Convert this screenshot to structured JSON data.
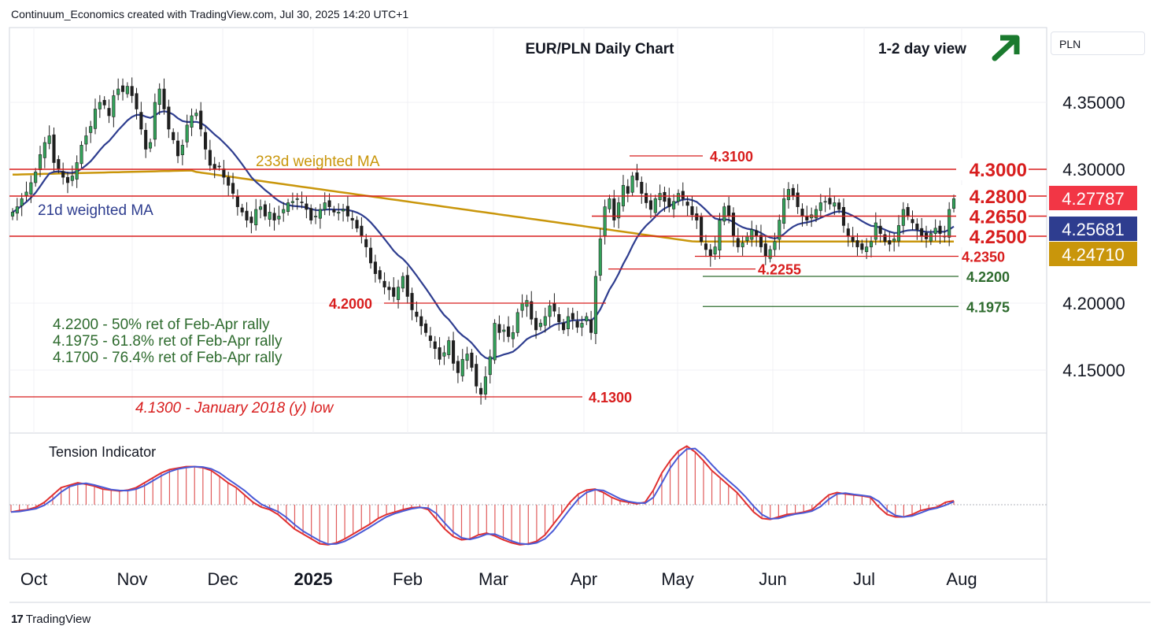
{
  "header": {
    "watermark": "Continuum_Economics created with TradingView.com, Jul 30, 2025 14:20 UTC+1"
  },
  "toolbar": {
    "currency": "PLN"
  },
  "footer": {
    "brand": "TradingView"
  },
  "chart_data": {
    "type": "candlestick",
    "title": "EUR/PLN Daily Chart",
    "view_label": "1-2 day view",
    "view_direction": "up",
    "grid": true,
    "ylim": [
      4.11,
      4.38
    ],
    "y_ticks": [
      "4.35000",
      "4.30000",
      "4.20000",
      "4.15000"
    ],
    "y_tick_values": [
      4.35,
      4.3,
      4.2,
      4.15
    ],
    "x_labels": [
      "Oct",
      "Nov",
      "Dec",
      "2025",
      "Feb",
      "Mar",
      "Apr",
      "May",
      "Jun",
      "Jul",
      "Aug"
    ],
    "x_label_bold": [
      false,
      false,
      false,
      true,
      false,
      false,
      false,
      false,
      false,
      false,
      false
    ],
    "price_badges": [
      {
        "value": "4.27787",
        "color": "#f23645"
      },
      {
        "value": "4.25681",
        "color": "#2e3d8f"
      },
      {
        "value": "4.24710",
        "color": "#c9960b"
      }
    ],
    "resistance_levels": [
      {
        "label": "4.3000",
        "value": 4.3
      },
      {
        "label": "4.2800",
        "value": 4.28
      },
      {
        "label": "4.2650",
        "value": 4.265
      },
      {
        "label": "4.2500",
        "value": 4.25
      }
    ],
    "minor_levels": [
      {
        "label": "4.3100",
        "value": 4.31,
        "color": "#d81e1e"
      },
      {
        "label": "4.2350",
        "value": 4.235,
        "color": "#d81e1e"
      },
      {
        "label": "4.2255",
        "value": 4.2255,
        "color": "#d81e1e"
      },
      {
        "label": "4.2200",
        "value": 4.22,
        "color": "#2e6b2e"
      },
      {
        "label": "4.2000",
        "value": 4.2,
        "color": "#d81e1e"
      },
      {
        "label": "4.1975",
        "value": 4.1975,
        "color": "#2e6b2e"
      },
      {
        "label": "4.1300",
        "value": 4.13,
        "color": "#d81e1e"
      }
    ],
    "annotations": {
      "ma233_label": "233d weighted MA",
      "ma21_label": "21d weighted MA",
      "low_note": "4.1300 - January 2018 (y) low",
      "retracements": [
        "4.2200 - 50% ret of Feb-Apr rally",
        "4.1975 - 61.8% ret of Feb-Apr rally",
        "4.1700 - 76.4% ret of Feb-Apr rally"
      ],
      "indicator_title": "Tension Indicator"
    },
    "colors": {
      "up": "#33a35a",
      "down": "#1f1f1f",
      "resistance": "#d81e1e",
      "support": "#2e6b2e",
      "ma21": "#2e3d8f",
      "ma233": "#c9960b"
    },
    "series": [
      {
        "name": "EUR/PLN close (approx.)",
        "values": [
          4.268,
          4.272,
          4.278,
          4.283,
          4.29,
          4.298,
          4.311,
          4.32,
          4.325,
          4.305,
          4.3,
          4.294,
          4.29,
          4.295,
          4.305,
          4.318,
          4.325,
          4.332,
          4.345,
          4.35,
          4.348,
          4.34,
          4.355,
          4.36,
          4.358,
          4.362,
          4.355,
          4.345,
          4.33,
          4.315,
          4.32,
          4.35,
          4.36,
          4.345,
          4.33,
          4.322,
          4.31,
          4.318,
          4.333,
          4.34,
          4.342,
          4.33,
          4.315,
          4.303,
          4.3,
          4.302,
          4.294,
          4.288,
          4.282,
          4.272,
          4.268,
          4.262,
          4.26,
          4.27,
          4.272,
          4.265,
          4.268,
          4.262,
          4.265,
          4.27,
          4.275,
          4.276,
          4.278,
          4.275,
          4.27,
          4.262,
          4.265,
          4.27,
          4.275,
          4.272,
          4.268,
          4.268,
          4.27,
          4.265,
          4.262,
          4.256,
          4.25,
          4.242,
          4.23,
          4.222,
          4.218,
          4.212,
          4.21,
          4.205,
          4.212,
          4.22,
          4.205,
          4.195,
          4.19,
          4.183,
          4.178,
          4.172,
          4.166,
          4.158,
          4.163,
          4.172,
          4.155,
          4.148,
          4.158,
          4.162,
          4.152,
          4.138,
          4.132,
          4.145,
          4.16,
          4.185,
          4.178,
          4.18,
          4.175,
          4.178,
          4.193,
          4.2,
          4.202,
          4.188,
          4.18,
          4.185,
          4.19,
          4.198,
          4.194,
          4.186,
          4.18,
          4.19,
          4.188,
          4.182,
          4.185,
          4.19,
          4.178,
          4.22,
          4.248,
          4.272,
          4.278,
          4.262,
          4.275,
          4.288,
          4.282,
          4.295,
          4.292,
          4.282,
          4.275,
          4.27,
          4.278,
          4.282,
          4.276,
          4.272,
          4.276,
          4.282,
          4.278,
          4.273,
          4.266,
          4.262,
          4.246,
          4.24,
          4.235,
          4.242,
          4.262,
          4.272,
          4.265,
          4.25,
          4.242,
          4.245,
          4.25,
          4.255,
          4.25,
          4.242,
          4.235,
          4.24,
          4.246,
          4.262,
          4.278,
          4.285,
          4.28,
          4.272,
          4.265,
          4.262,
          4.266,
          4.27,
          4.275,
          4.276,
          4.274,
          4.275,
          4.27,
          4.258,
          4.25,
          4.246,
          4.242,
          4.24,
          4.242,
          4.246,
          4.26,
          4.252,
          4.246,
          4.244,
          4.248,
          4.258,
          4.27,
          4.265,
          4.26,
          4.255,
          4.25,
          4.248,
          4.252,
          4.256,
          4.252,
          4.25,
          4.27,
          4.278
        ]
      }
    ],
    "tension_indicator": {
      "name": "Tension Indicator",
      "values": [
        -0.15,
        -0.12,
        -0.1,
        -0.05,
        0.05,
        0.2,
        0.35,
        0.4,
        0.45,
        0.42,
        0.38,
        0.32,
        0.3,
        0.28,
        0.3,
        0.35,
        0.45,
        0.55,
        0.65,
        0.72,
        0.75,
        0.78,
        0.78,
        0.76,
        0.7,
        0.58,
        0.45,
        0.35,
        0.2,
        0.05,
        -0.05,
        -0.1,
        -0.2,
        -0.35,
        -0.5,
        -0.6,
        -0.7,
        -0.8,
        -0.82,
        -0.78,
        -0.7,
        -0.6,
        -0.5,
        -0.4,
        -0.28,
        -0.2,
        -0.15,
        -0.1,
        -0.06,
        -0.05,
        -0.1,
        -0.3,
        -0.5,
        -0.65,
        -0.72,
        -0.7,
        -0.62,
        -0.58,
        -0.64,
        -0.72,
        -0.78,
        -0.82,
        -0.8,
        -0.75,
        -0.62,
        -0.4,
        -0.18,
        0.05,
        0.22,
        0.3,
        0.32,
        0.25,
        0.15,
        0.08,
        0.05,
        0.02,
        0.05,
        0.3,
        0.65,
        0.9,
        1.1,
        1.2,
        1.08,
        0.9,
        0.7,
        0.55,
        0.4,
        0.25,
        0.05,
        -0.15,
        -0.28,
        -0.3,
        -0.25,
        -0.2,
        -0.18,
        -0.15,
        -0.1,
        0.05,
        0.2,
        0.25,
        0.22,
        0.2,
        0.18,
        0.15,
        -0.05,
        -0.2,
        -0.25,
        -0.25,
        -0.2,
        -0.12,
        -0.08,
        -0.05,
        0.05,
        0.08
      ]
    }
  }
}
